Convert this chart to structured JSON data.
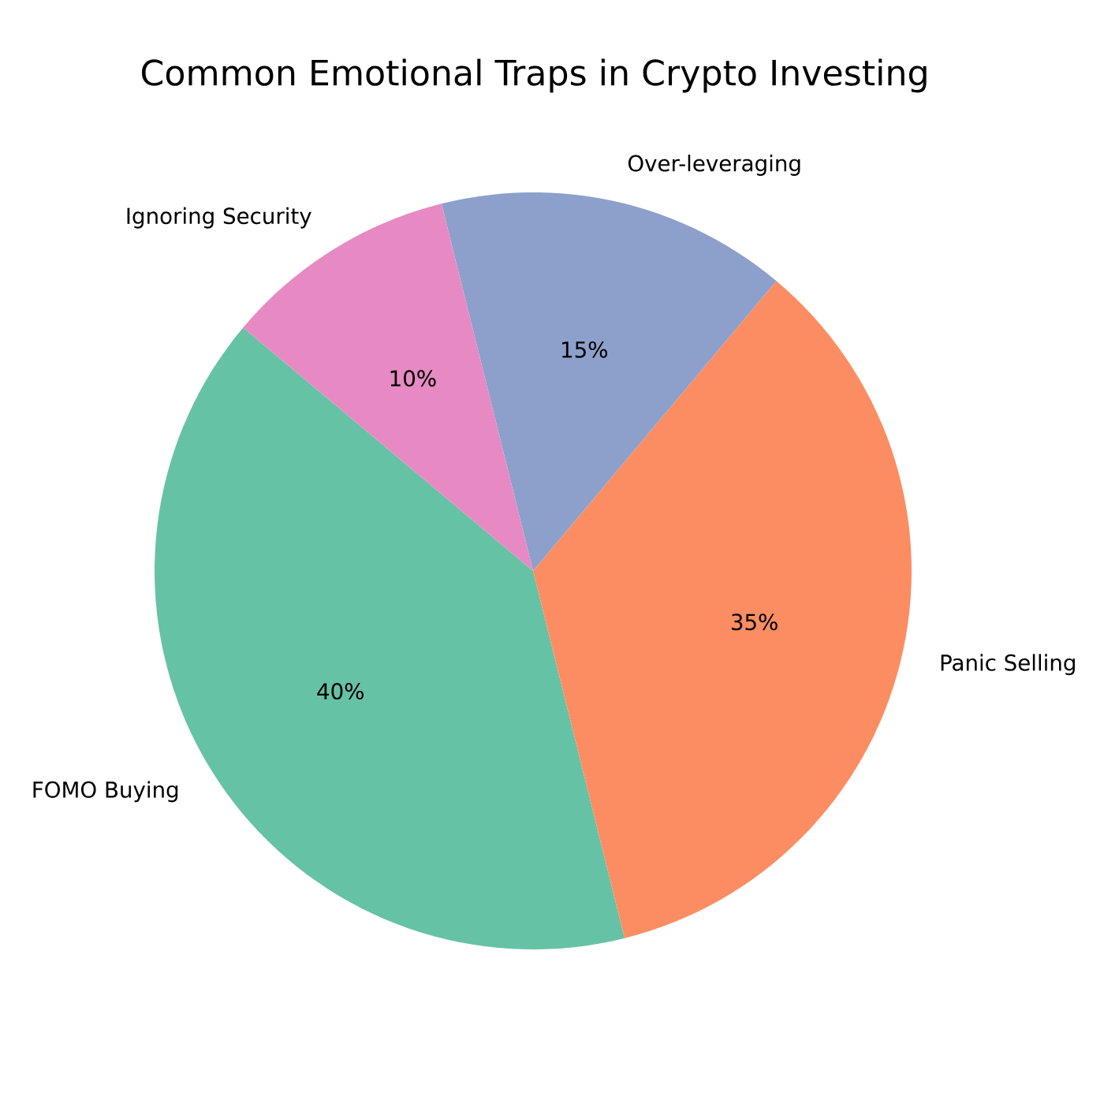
{
  "chart_data": {
    "type": "pie",
    "title": "Common Emotional Traps in Crypto Investing",
    "categories": [
      "FOMO Buying",
      "Panic Selling",
      "Over-leveraging",
      "Ignoring Security"
    ],
    "values": [
      40,
      35,
      15,
      10
    ],
    "value_labels": [
      "40%",
      "35%",
      "15%",
      "10%"
    ],
    "colors": [
      "#66c2a5",
      "#fc8d62",
      "#8da0cb",
      "#e78ac3"
    ]
  }
}
